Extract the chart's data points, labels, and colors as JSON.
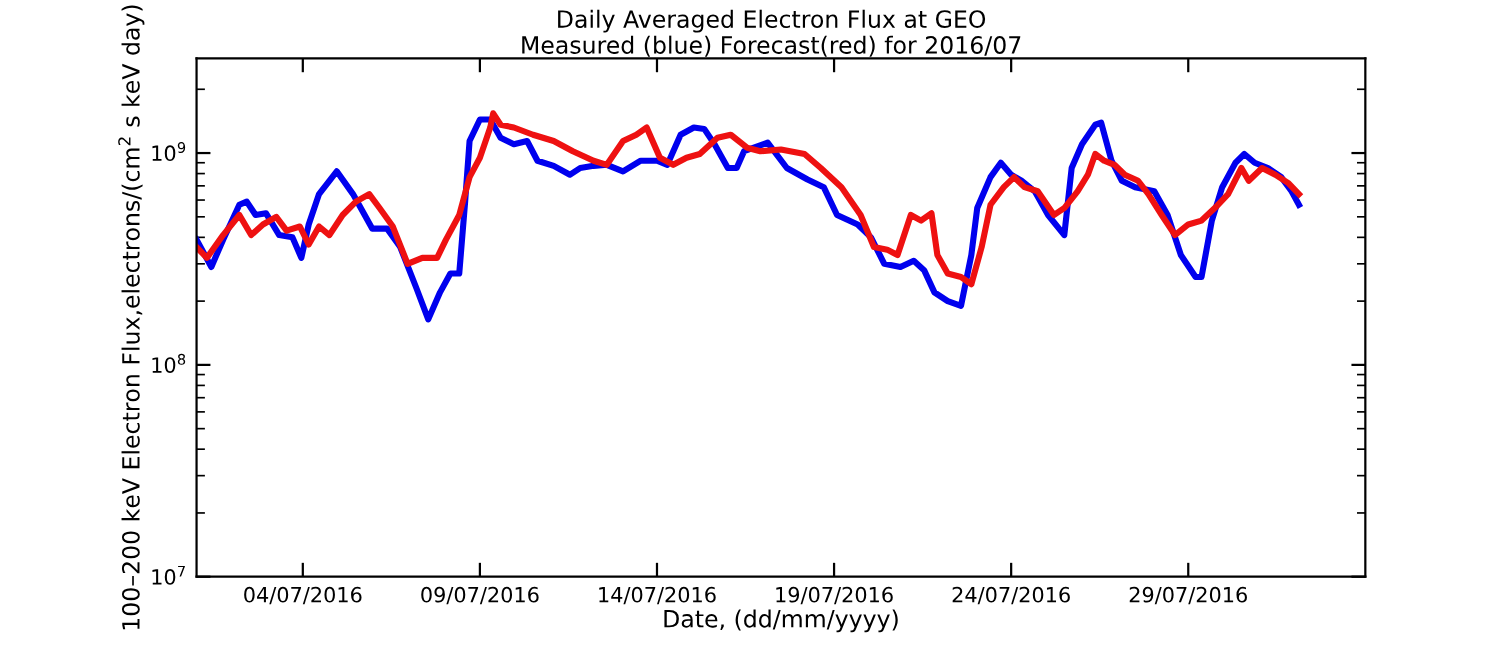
{
  "chart_data": {
    "type": "line",
    "title": "Daily Averaged Electron Flux at GEO",
    "subtitle": "Measured (blue) Forecast(red) for 2016/07",
    "xlabel": "Date, (dd/mm/yyyy)",
    "ylabel": "100–200 keV Electron Flux,electrons/(cm$^{2}$ s keV day)",
    "log": "y",
    "grid": false,
    "legend": false,
    "line_style": "solid",
    "marker": "none",
    "xlim": [
      "2016-07-01",
      "2016-08-03"
    ],
    "xticks": [
      {
        "value": "2016-07-04",
        "label": "04/07/2016"
      },
      {
        "value": "2016-07-09",
        "label": "09/07/2016"
      },
      {
        "value": "2016-07-14",
        "label": "14/07/2016"
      },
      {
        "value": "2016-07-19",
        "label": "19/07/2016"
      },
      {
        "value": "2016-07-24",
        "label": "24/07/2016"
      },
      {
        "value": "2016-07-29",
        "label": "29/07/2016"
      }
    ],
    "ylim": [
      10000000,
      2800000000
    ],
    "yticks": [
      {
        "value": 10000000,
        "label": "10$^{7}$"
      },
      {
        "value": 100000000,
        "label": "10$^{8}$"
      },
      {
        "value": 1000000000,
        "label": "10$^{9}$"
      }
    ],
    "series": [
      {
        "color": "#0000ee",
        "x": [
          "2016-07-01T00:00",
          "2016-07-01T10:00",
          "2016-07-01T18:00",
          "2016-07-02T05:00",
          "2016-07-02T10:00",
          "2016-07-02T16:00",
          "2016-07-02T23:00",
          "2016-07-03T08:00",
          "2016-07-03T17:00",
          "2016-07-03T23:00",
          "2016-07-04T04:00",
          "2016-07-04T11:00",
          "2016-07-04T23:00",
          "2016-07-05T10:00",
          "2016-07-05T23:00",
          "2016-07-06T09:00",
          "2016-07-06T18:00",
          "2016-07-07T05:00",
          "2016-07-07T13:00",
          "2016-07-07T21:00",
          "2016-07-08T04:00",
          "2016-07-08T10:00",
          "2016-07-08T14:00",
          "2016-07-08T17:00",
          "2016-07-09T00:00",
          "2016-07-09T07:00",
          "2016-07-09T14:00",
          "2016-07-09T23:00",
          "2016-07-10T08:00",
          "2016-07-10T15:00",
          "2016-07-11T02:00",
          "2016-07-11T13:00",
          "2016-07-11T20:00",
          "2016-07-12T05:00",
          "2016-07-12T14:00",
          "2016-07-13T01:00",
          "2016-07-13T13:00",
          "2016-07-14T00:00",
          "2016-07-14T07:00",
          "2016-07-14T16:00",
          "2016-07-15T01:00",
          "2016-07-15T08:00",
          "2016-07-15T15:00",
          "2016-07-16T00:00",
          "2016-07-16T06:00",
          "2016-07-16T11:00",
          "2016-07-17T03:00",
          "2016-07-17T16:00",
          "2016-07-18T06:00",
          "2016-07-18T17:00",
          "2016-07-19T02:00",
          "2016-07-19T16:00",
          "2016-07-20T01:00",
          "2016-07-20T10:00",
          "2016-07-20T21:00",
          "2016-07-21T06:00",
          "2016-07-21T13:00",
          "2016-07-21T20:00",
          "2016-07-22T05:00",
          "2016-07-22T14:00",
          "2016-07-22T21:00",
          "2016-07-23T01:00",
          "2016-07-23T10:00",
          "2016-07-23T17:00",
          "2016-07-24T00:00",
          "2016-07-24T07:00",
          "2016-07-24T16:00",
          "2016-07-25T01:00",
          "2016-07-25T12:00",
          "2016-07-25T17:00",
          "2016-07-26T00:00",
          "2016-07-26T09:00",
          "2016-07-26T13:00",
          "2016-07-26T20:00",
          "2016-07-27T03:00",
          "2016-07-27T12:00",
          "2016-07-28T01:00",
          "2016-07-28T10:00",
          "2016-07-28T19:00",
          "2016-07-29T05:00",
          "2016-07-29T09:00",
          "2016-07-29T16:00",
          "2016-07-29T23:00",
          "2016-07-30T08:00",
          "2016-07-30T14:00",
          "2016-07-30T21:00",
          "2016-07-31T06:00",
          "2016-07-31T15:00",
          "2016-07-31T22:00",
          "2016-08-01T03:00"
        ],
        "values": [
          390000000,
          290000000,
          390000000,
          570000000,
          590000000,
          510000000,
          520000000,
          410000000,
          400000000,
          320000000,
          460000000,
          640000000,
          820000000,
          640000000,
          440000000,
          440000000,
          360000000,
          230000000,
          164000000,
          220000000,
          270000000,
          270000000,
          590000000,
          1140000000,
          1440000000,
          1440000000,
          1180000000,
          1100000000,
          1140000000,
          920000000,
          870000000,
          790000000,
          850000000,
          870000000,
          880000000,
          820000000,
          920000000,
          920000000,
          880000000,
          1220000000,
          1320000000,
          1300000000,
          1100000000,
          850000000,
          850000000,
          1020000000,
          1120000000,
          850000000,
          750000000,
          690000000,
          510000000,
          460000000,
          400000000,
          300000000,
          290000000,
          310000000,
          280000000,
          220000000,
          200000000,
          190000000,
          330000000,
          550000000,
          770000000,
          900000000,
          790000000,
          740000000,
          660000000,
          510000000,
          410000000,
          850000000,
          1100000000,
          1360000000,
          1390000000,
          920000000,
          740000000,
          690000000,
          660000000,
          510000000,
          330000000,
          260000000,
          260000000,
          480000000,
          690000000,
          900000000,
          990000000,
          900000000,
          850000000,
          770000000,
          660000000,
          570000000
        ]
      },
      {
        "color": "#ee1111",
        "x": [
          "2016-07-01T00:00",
          "2016-07-01T07:00",
          "2016-07-01T18:00",
          "2016-07-02T05:00",
          "2016-07-02T13:00",
          "2016-07-02T21:00",
          "2016-07-03T06:00",
          "2016-07-03T13:00",
          "2016-07-03T22:00",
          "2016-07-04T04:00",
          "2016-07-04T11:00",
          "2016-07-04T18:00",
          "2016-07-05T03:00",
          "2016-07-05T12:00",
          "2016-07-05T21:00",
          "2016-07-06T04:00",
          "2016-07-06T13:00",
          "2016-07-06T23:00",
          "2016-07-07T09:00",
          "2016-07-07T19:00",
          "2016-07-08T01:00",
          "2016-07-08T10:00",
          "2016-07-08T17:00",
          "2016-07-09T00:00",
          "2016-07-09T07:00",
          "2016-07-09T09:00",
          "2016-07-09T14:00",
          "2016-07-09T23:00",
          "2016-07-10T12:00",
          "2016-07-11T02:00",
          "2016-07-11T15:00",
          "2016-07-12T05:00",
          "2016-07-12T14:00",
          "2016-07-13T01:00",
          "2016-07-13T10:00",
          "2016-07-13T17:00",
          "2016-07-14T02:00",
          "2016-07-14T11:00",
          "2016-07-14T20:00",
          "2016-07-15T05:00",
          "2016-07-15T17:00",
          "2016-07-16T02:00",
          "2016-07-16T13:00",
          "2016-07-16T22:00",
          "2016-07-17T12:00",
          "2016-07-18T04:00",
          "2016-07-18T15:00",
          "2016-07-19T05:00",
          "2016-07-19T18:00",
          "2016-07-20T03:00",
          "2016-07-20T12:00",
          "2016-07-20T19:00",
          "2016-07-21T04:00",
          "2016-07-21T11:00",
          "2016-07-21T18:00",
          "2016-07-21T22:00",
          "2016-07-22T05:00",
          "2016-07-22T14:00",
          "2016-07-22T21:00",
          "2016-07-23T04:00",
          "2016-07-23T10:00",
          "2016-07-23T19:00",
          "2016-07-24T02:00",
          "2016-07-24T09:00",
          "2016-07-24T18:00",
          "2016-07-25T05:00",
          "2016-07-25T12:00",
          "2016-07-25T21:00",
          "2016-07-26T04:00",
          "2016-07-26T09:00",
          "2016-07-26T15:00",
          "2016-07-26T22:00",
          "2016-07-27T05:00",
          "2016-07-27T14:00",
          "2016-07-27T21:00",
          "2016-07-28T06:00",
          "2016-07-28T15:00",
          "2016-07-29T00:00",
          "2016-07-29T09:00",
          "2016-07-29T18:00",
          "2016-07-30T03:00",
          "2016-07-30T12:00",
          "2016-07-30T17:00",
          "2016-07-31T02:00",
          "2016-07-31T11:00",
          "2016-07-31T20:00",
          "2016-08-01T03:00"
        ],
        "values": [
          360000000,
          320000000,
          410000000,
          510000000,
          410000000,
          460000000,
          500000000,
          430000000,
          450000000,
          370000000,
          450000000,
          410000000,
          510000000,
          590000000,
          640000000,
          550000000,
          450000000,
          300000000,
          320000000,
          320000000,
          390000000,
          510000000,
          770000000,
          950000000,
          1320000000,
          1540000000,
          1360000000,
          1320000000,
          1220000000,
          1140000000,
          1020000000,
          920000000,
          880000000,
          1140000000,
          1220000000,
          1320000000,
          950000000,
          880000000,
          950000000,
          990000000,
          1180000000,
          1220000000,
          1060000000,
          1020000000,
          1040000000,
          990000000,
          850000000,
          690000000,
          510000000,
          360000000,
          350000000,
          330000000,
          510000000,
          480000000,
          520000000,
          330000000,
          270000000,
          260000000,
          240000000,
          360000000,
          570000000,
          690000000,
          770000000,
          690000000,
          660000000,
          510000000,
          550000000,
          660000000,
          790000000,
          990000000,
          920000000,
          880000000,
          790000000,
          740000000,
          640000000,
          510000000,
          410000000,
          460000000,
          480000000,
          550000000,
          640000000,
          850000000,
          740000000,
          850000000,
          790000000,
          720000000,
          640000000
        ]
      }
    ]
  }
}
